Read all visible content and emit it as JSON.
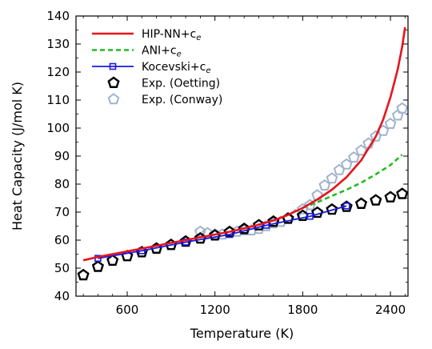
{
  "chart_data": {
    "type": "line",
    "title": "",
    "xlabel": "Temperature (K)",
    "ylabel": "Heat Capacity (J/mol K)",
    "xlim": [
      250,
      2520
    ],
    "ylim": [
      40,
      140
    ],
    "xticks": [
      600,
      1200,
      1800,
      2400
    ],
    "yticks": [
      40,
      50,
      60,
      70,
      80,
      90,
      100,
      110,
      120,
      130,
      140
    ],
    "grid": false,
    "legend_position": "top-left",
    "series": [
      {
        "name": "HIP-NN+c",
        "name_sub": "e",
        "style": "line",
        "color": "#e8141c",
        "x": [
          300,
          400,
          500,
          600,
          700,
          800,
          900,
          1000,
          1100,
          1200,
          1300,
          1400,
          1500,
          1600,
          1700,
          1800,
          1900,
          2000,
          2100,
          2200,
          2300,
          2350,
          2400,
          2450,
          2480,
          2500
        ],
        "y": [
          52.8,
          54.0,
          55.0,
          56.0,
          57.0,
          58.0,
          59.0,
          60.0,
          61.0,
          62.0,
          63.0,
          64.2,
          65.5,
          67.0,
          69.0,
          71.5,
          74.5,
          78.0,
          82.5,
          88.5,
          97.0,
          103.0,
          111.0,
          121.0,
          129.0,
          136.0
        ]
      },
      {
        "name": "ANI+c",
        "name_sub": "e",
        "style": "dashed",
        "color": "#22bb22",
        "x": [
          1800,
          1900,
          2000,
          2100,
          2200,
          2300,
          2400,
          2480
        ],
        "y": [
          71.5,
          73.5,
          75.8,
          78.0,
          80.5,
          83.5,
          86.8,
          90.5
        ]
      },
      {
        "name": "Kocevski+c",
        "name_sub": "e",
        "style": "line-square",
        "color": "#1a1ae0",
        "x": [
          400,
          700,
          1000,
          1300,
          1550,
          1850,
          2100
        ],
        "y": [
          53.5,
          56.2,
          59.3,
          62.0,
          65.3,
          68.5,
          72.2
        ]
      },
      {
        "name": "Exp. (Oetting)",
        "style": "marker-pentagon",
        "color": "#000000",
        "x": [
          300,
          400,
          500,
          600,
          700,
          800,
          900,
          1000,
          1100,
          1200,
          1300,
          1400,
          1500,
          1600,
          1700,
          1800,
          1900,
          2000,
          2100,
          2200,
          2300,
          2400,
          2480
        ],
        "y": [
          47.5,
          50.5,
          52.7,
          54.3,
          55.7,
          57.0,
          58.3,
          59.5,
          60.6,
          61.7,
          62.9,
          64.0,
          65.3,
          66.6,
          67.7,
          68.7,
          69.8,
          70.9,
          71.9,
          73.0,
          74.2,
          75.3,
          76.5
        ]
      },
      {
        "name": "Exp. (Conway)",
        "style": "marker-pentagon",
        "color": "#9fb3cc",
        "x": [
          1100,
          1150,
          1200,
          1250,
          1300,
          1350,
          1400,
          1450,
          1500,
          1550,
          1600,
          1650,
          1700,
          1750,
          1800,
          1850,
          1900,
          1950,
          2000,
          2050,
          2100,
          2150,
          2200,
          2250,
          2300,
          2350,
          2400,
          2450,
          2480
        ],
        "y": [
          63.0,
          62.5,
          62.0,
          62.0,
          63.0,
          63.0,
          63.5,
          63.5,
          64.0,
          65.0,
          66.0,
          66.5,
          67.5,
          69.0,
          71.0,
          72.5,
          76.0,
          79.5,
          82.0,
          85.0,
          87.0,
          89.5,
          92.0,
          94.5,
          97.0,
          99.0,
          101.5,
          104.5,
          107.0
        ]
      }
    ]
  }
}
